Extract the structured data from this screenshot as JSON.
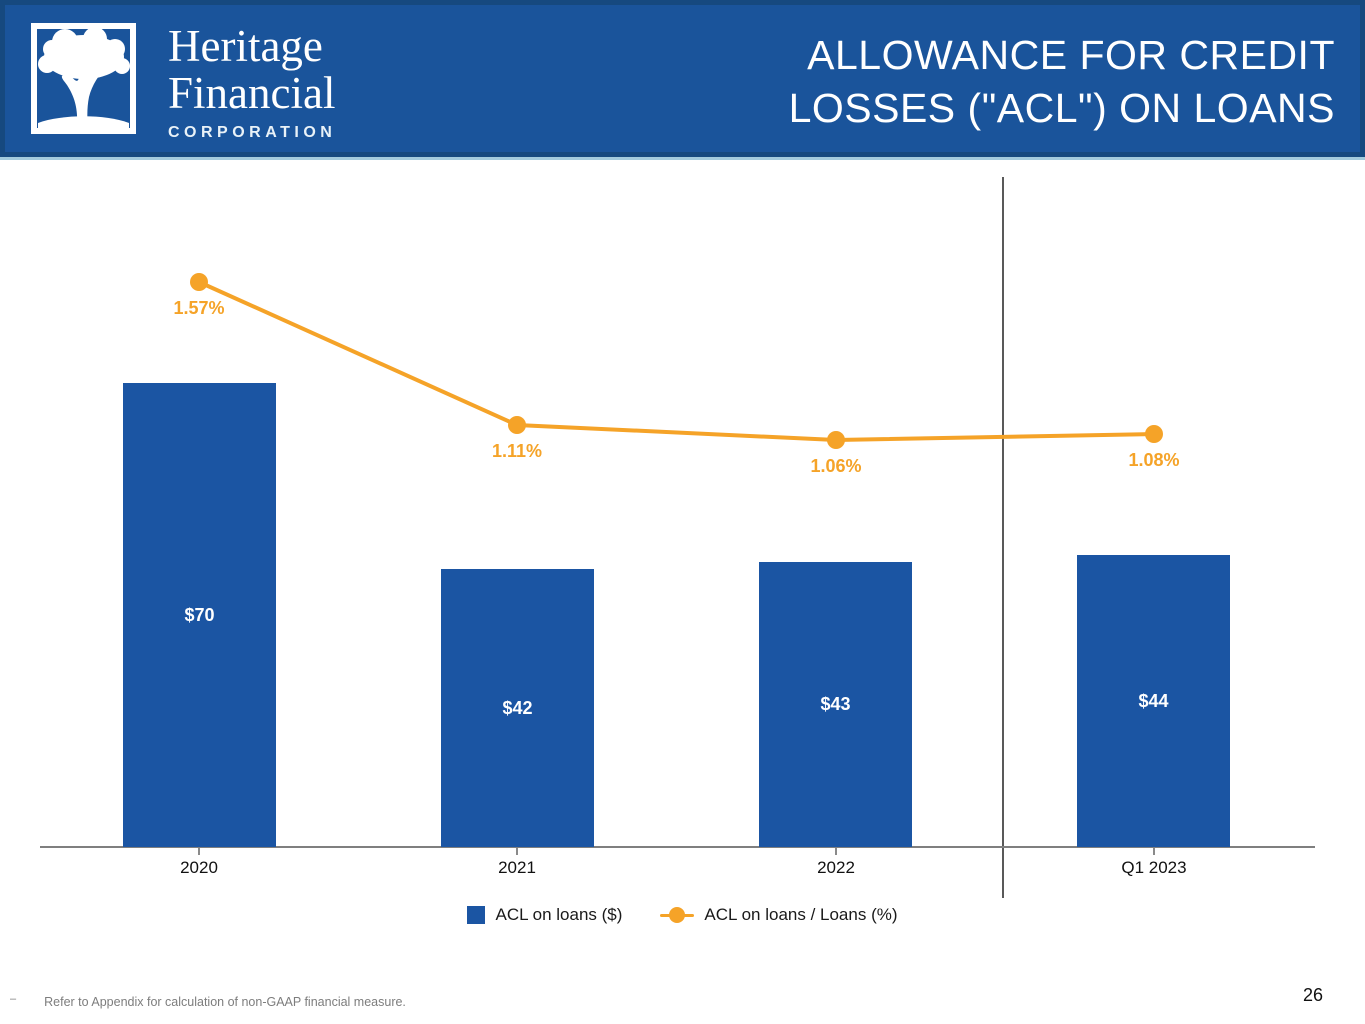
{
  "header": {
    "logo_name_line1": "Heritage",
    "logo_name_line2": "Financial",
    "logo_subtitle": "CORPORATION",
    "title_line1": "ALLOWANCE FOR CREDIT",
    "title_line2": "LOSSES (\"ACL\") ON LOANS"
  },
  "chart_data": {
    "type": "bar+line combo",
    "categories": [
      "2020",
      "2021",
      "2022",
      "Q1 2023"
    ],
    "series": [
      {
        "name": "ACL on loans ($)",
        "type": "bar",
        "values": [
          70,
          42,
          43,
          44
        ],
        "labels": [
          "$70",
          "$42",
          "$43",
          "$44"
        ],
        "unit": "$ millions",
        "color": "#1B55A3"
      },
      {
        "name": "ACL on loans / Loans (%)",
        "type": "line",
        "values": [
          1.57,
          1.11,
          1.06,
          1.08
        ],
        "labels": [
          "1.57%",
          "1.11%",
          "1.06%",
          "1.08%"
        ],
        "unit": "%",
        "color": "#F5A328"
      }
    ],
    "axes": {
      "x_ticks_visible": true,
      "y_axis_labels_visible": false,
      "data_labels_visible": true
    },
    "divider_between": [
      "2022",
      "Q1 2023"
    ],
    "legend_position": "bottom-center"
  },
  "legend": {
    "bar_label": "ACL on loans ($)",
    "line_label": "ACL on loans / Loans (%)"
  },
  "footer": {
    "footnote_marker": "–",
    "footnote_text": "Refer to Appendix for calculation of non-GAAP financial measure.",
    "page_number": "26"
  },
  "colors": {
    "header_blue": "#1A549B",
    "header_border": "#16497F",
    "header_edge_light": "#A3CBDD",
    "bar_blue": "#1B55A3",
    "line_orange": "#F5A328",
    "axis_gray": "#7f7f7f",
    "divider_gray": "#595959"
  }
}
